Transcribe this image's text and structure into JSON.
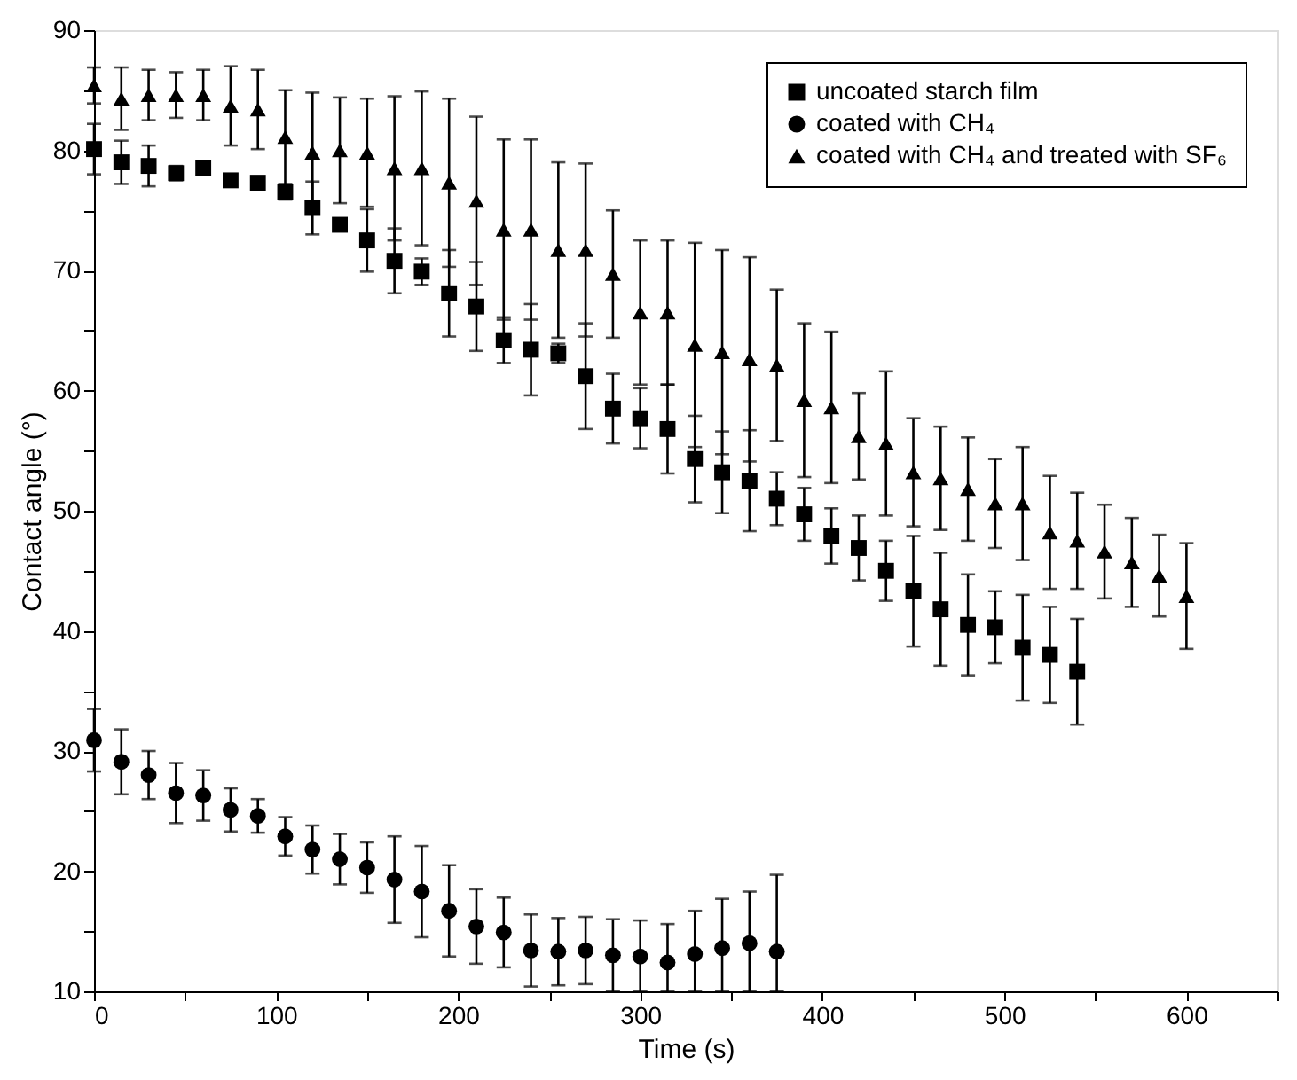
{
  "chart_data": {
    "type": "scatter",
    "xlabel": "Time (s)",
    "ylabel": "Contact angle (°)",
    "x": [
      0,
      15,
      30,
      45,
      60,
      75,
      90,
      105,
      120,
      135,
      150,
      165,
      180,
      195,
      210,
      225,
      240,
      255,
      270,
      285,
      300,
      315,
      330,
      345,
      360,
      375,
      390,
      405,
      420,
      435,
      450,
      465,
      480,
      495,
      510,
      525,
      540,
      555,
      570,
      585,
      600
    ],
    "series": [
      {
        "name": "uncoated starch film",
        "color": "#000000",
        "marker": "square",
        "x": [
          0,
          15,
          30,
          45,
          60,
          75,
          90,
          105,
          120,
          135,
          150,
          165,
          180,
          195,
          210,
          225,
          240,
          255,
          270,
          285,
          300,
          315,
          330,
          345,
          360,
          375,
          390,
          405,
          420,
          435,
          450,
          465,
          480,
          495,
          510,
          525,
          540
        ],
        "values": [
          80.1,
          79.0,
          78.7,
          78.1,
          78.5,
          77.5,
          77.3,
          76.5,
          75.2,
          73.8,
          72.5,
          70.8,
          69.9,
          68.1,
          67.0,
          64.2,
          63.4,
          63.1,
          61.2,
          58.5,
          57.7,
          56.8,
          54.3,
          53.2,
          52.5,
          51.0,
          49.7,
          47.9,
          46.9,
          45.0,
          43.3,
          41.8,
          40.5,
          40.3,
          38.6,
          38.0,
          36.6
        ],
        "errors": [
          2.1,
          1.8,
          1.7,
          0.6,
          0.5,
          0.5,
          0.5,
          0.6,
          2.2,
          0.5,
          2.6,
          2.7,
          1.1,
          3.6,
          3.7,
          1.9,
          3.8,
          0.8,
          4.4,
          2.9,
          2.5,
          3.7,
          3.6,
          3.4,
          4.2,
          2.2,
          2.2,
          2.3,
          2.7,
          2.5,
          4.6,
          4.7,
          4.2,
          3.0,
          4.4,
          4.0,
          4.4
        ]
      },
      {
        "name": "coated with CH₄",
        "color": "#000000",
        "marker": "circle",
        "x": [
          0,
          15,
          30,
          45,
          60,
          75,
          90,
          105,
          120,
          135,
          150,
          165,
          180,
          195,
          210,
          225,
          240,
          255,
          270,
          285,
          300,
          315,
          330,
          345,
          360,
          375
        ],
        "values": [
          30.9,
          29.1,
          28.0,
          26.5,
          26.3,
          25.1,
          24.6,
          22.9,
          21.8,
          21.0,
          20.3,
          19.3,
          18.3,
          16.7,
          15.4,
          14.9,
          13.4,
          13.3,
          13.4,
          13.0,
          12.9,
          12.4,
          13.1,
          13.6,
          14.0,
          13.3
        ],
        "errors": [
          2.6,
          2.7,
          2.0,
          2.5,
          2.1,
          1.8,
          1.4,
          1.6,
          2.0,
          2.1,
          2.1,
          3.6,
          3.8,
          3.8,
          3.1,
          2.9,
          3.0,
          2.8,
          2.8,
          3.0,
          [
            10,
            15.9
          ],
          [
            10,
            15.6
          ],
          [
            10,
            16.7
          ],
          [
            10,
            17.7
          ],
          [
            10,
            18.3
          ],
          [
            10,
            19.7
          ]
        ]
      },
      {
        "name": "coated with CH₄ and treated with SF₆",
        "color": "#000000",
        "marker": "triangle",
        "values": [
          85.4,
          84.3,
          84.6,
          84.6,
          84.6,
          83.7,
          83.4,
          81.1,
          79.8,
          80.0,
          79.8,
          78.5,
          78.5,
          77.3,
          75.8,
          73.4,
          73.4,
          71.7,
          71.7,
          69.7,
          66.5,
          66.5,
          63.8,
          63.2,
          62.6,
          62.1,
          59.2,
          58.6,
          56.2,
          55.6,
          53.2,
          52.7,
          51.8,
          50.6,
          50.6,
          48.2,
          47.5,
          46.6,
          45.7,
          44.6,
          42.9
        ],
        "errors": [
          1.5,
          2.6,
          2.1,
          1.9,
          2.1,
          3.3,
          3.3,
          3.9,
          5.0,
          4.4,
          4.5,
          6.0,
          6.4,
          7.0,
          7.0,
          7.5,
          7.5,
          7.3,
          7.2,
          5.3,
          6.0,
          6.0,
          8.5,
          8.5,
          8.5,
          6.3,
          6.4,
          6.3,
          3.6,
          6.0,
          4.5,
          4.3,
          4.3,
          3.7,
          4.7,
          4.7,
          4.0,
          3.9,
          3.7,
          3.4,
          4.4
        ]
      }
    ],
    "xlim": [
      0,
      650
    ],
    "xticks": [
      0,
      {
        "value": 50,
        "label": null
      },
      100,
      {
        "value": 150,
        "label": null
      },
      200,
      {
        "value": 250,
        "label": null
      },
      300,
      {
        "value": 350,
        "label": null
      },
      400,
      {
        "value": 450,
        "label": null
      },
      500,
      {
        "value": 550,
        "label": null
      },
      600,
      {
        "value": 650,
        "label": null
      }
    ],
    "ylim": [
      10,
      90
    ],
    "yticks": [
      10,
      {
        "value": 15,
        "label": null
      },
      20,
      {
        "value": 25,
        "label": null
      },
      30,
      {
        "value": 35,
        "label": null
      },
      40,
      {
        "value": 45,
        "label": null
      },
      50,
      {
        "value": 55,
        "label": null
      },
      60,
      {
        "value": 65,
        "label": null
      },
      70,
      {
        "value": 75,
        "label": null
      },
      80,
      {
        "value": 85,
        "label": null
      },
      90
    ],
    "grid": false,
    "legend": "top right"
  }
}
